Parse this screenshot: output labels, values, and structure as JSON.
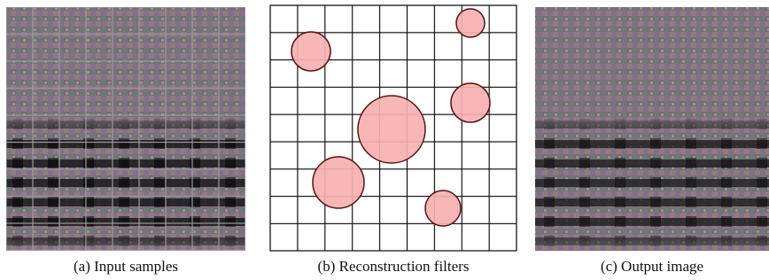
{
  "figure": {
    "panels": [
      {
        "caption": "(a) Input samples"
      },
      {
        "caption": "(b) Reconstruction filters"
      },
      {
        "caption": "(c) Output image"
      }
    ]
  }
}
